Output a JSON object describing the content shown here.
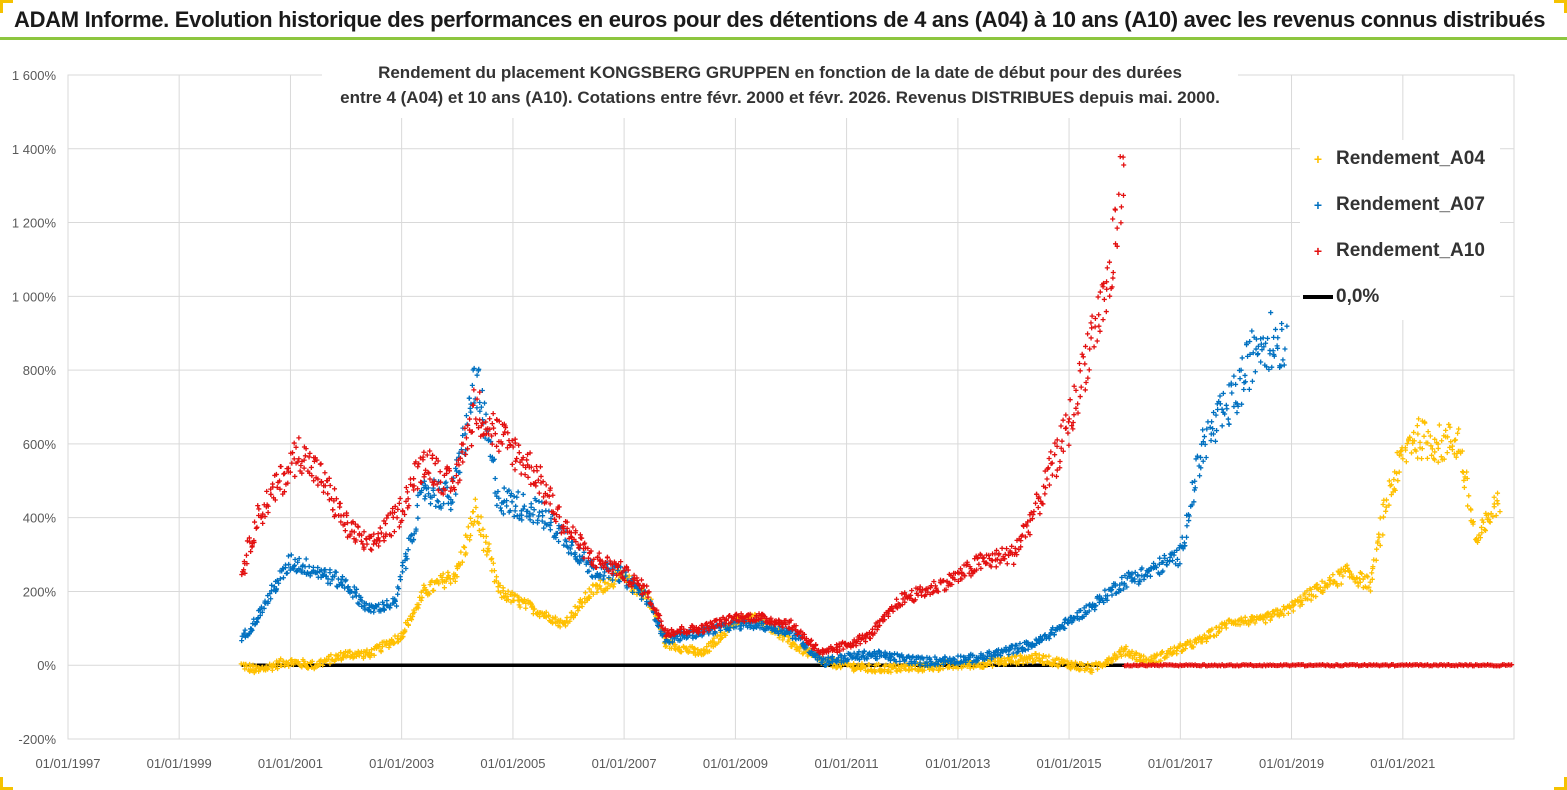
{
  "header": {
    "title": "ADAM Informe. Evolution historique des performances en euros pour des détentions de 4 ans (A04) à 10 ans (A10) avec les revenus connus distribués"
  },
  "chart_data": {
    "type": "scatter",
    "title_line1": "Rendement du placement KONGSBERG GRUPPEN en fonction de la date de début pour des durées",
    "title_line2": "entre 4 (A04) et 10 ans (A10). Cotations entre févr. 2000 et févr. 2026. Revenus DISTRIBUES depuis mai. 2000.",
    "xlabel": "",
    "ylabel": "",
    "x_range": [
      "01/01/1997",
      "01/01/2023"
    ],
    "y_range": [
      -200,
      1600
    ],
    "x_ticks": [
      "01/01/1997",
      "01/01/1999",
      "01/01/2001",
      "01/01/2003",
      "01/01/2005",
      "01/01/2007",
      "01/01/2009",
      "01/01/2011",
      "01/01/2013",
      "01/01/2015",
      "01/01/2017",
      "01/01/2019",
      "01/01/2021"
    ],
    "y_ticks": [
      "-200%",
      "0%",
      "200%",
      "400%",
      "600%",
      "800%",
      "1 000%",
      "1 200%",
      "1 400%",
      "1 600%"
    ],
    "grid": true,
    "legend_position": "right",
    "zero_line_label": "0,0%",
    "series": [
      {
        "name": "Rendement_A04",
        "color": "#ffc000",
        "points": [
          [
            "2000-02-15",
            0
          ],
          [
            "2000-06-01",
            -15
          ],
          [
            "2000-12-01",
            10
          ],
          [
            "2001-06-01",
            0
          ],
          [
            "2002-01-01",
            30
          ],
          [
            "2002-06-01",
            30
          ],
          [
            "2003-01-01",
            80
          ],
          [
            "2003-06-01",
            200
          ],
          [
            "2004-01-01",
            250
          ],
          [
            "2004-05-01",
            420
          ],
          [
            "2004-10-01",
            200
          ],
          [
            "2005-06-01",
            150
          ],
          [
            "2005-12-01",
            110
          ],
          [
            "2006-06-01",
            200
          ],
          [
            "2006-12-01",
            240
          ],
          [
            "2007-06-01",
            190
          ],
          [
            "2007-10-01",
            60
          ],
          [
            "2008-06-01",
            30
          ],
          [
            "2009-01-01",
            120
          ],
          [
            "2009-06-01",
            130
          ],
          [
            "2010-01-01",
            60
          ],
          [
            "2010-08-01",
            10
          ],
          [
            "2011-06-01",
            -10
          ],
          [
            "2012-06-01",
            -5
          ],
          [
            "2013-06-01",
            5
          ],
          [
            "2014-06-01",
            20
          ],
          [
            "2015-06-01",
            -10
          ],
          [
            "2016-01-01",
            40
          ],
          [
            "2016-06-01",
            10
          ],
          [
            "2017-06-01",
            70
          ],
          [
            "2017-12-01",
            120
          ],
          [
            "2018-06-01",
            120
          ],
          [
            "2018-12-01",
            150
          ],
          [
            "2019-06-01",
            200
          ],
          [
            "2020-01-01",
            250
          ],
          [
            "2020-06-01",
            220
          ],
          [
            "2020-10-01",
            470
          ],
          [
            "2021-03-01",
            620
          ],
          [
            "2021-09-01",
            600
          ],
          [
            "2022-01-01",
            610
          ],
          [
            "2022-05-01",
            330
          ],
          [
            "2022-10-01",
            460
          ]
        ]
      },
      {
        "name": "Rendement_A07",
        "color": "#0070c0",
        "points": [
          [
            "2000-02-15",
            70
          ],
          [
            "2000-06-01",
            130
          ],
          [
            "2000-10-01",
            220
          ],
          [
            "2001-01-01",
            280
          ],
          [
            "2001-06-01",
            260
          ],
          [
            "2002-01-01",
            220
          ],
          [
            "2002-06-01",
            150
          ],
          [
            "2002-12-01",
            170
          ],
          [
            "2003-01-01",
            250
          ],
          [
            "2003-06-01",
            480
          ],
          [
            "2003-12-01",
            450
          ],
          [
            "2004-05-01",
            780
          ],
          [
            "2004-10-01",
            450
          ],
          [
            "2005-06-01",
            420
          ],
          [
            "2005-12-01",
            350
          ],
          [
            "2006-06-01",
            260
          ],
          [
            "2006-12-01",
            250
          ],
          [
            "2007-06-01",
            180
          ],
          [
            "2007-10-01",
            70
          ],
          [
            "2008-06-01",
            90
          ],
          [
            "2009-01-01",
            110
          ],
          [
            "2009-06-01",
            110
          ],
          [
            "2010-01-01",
            90
          ],
          [
            "2010-08-01",
            10
          ],
          [
            "2011-06-01",
            30
          ],
          [
            "2012-06-01",
            10
          ],
          [
            "2013-06-01",
            20
          ],
          [
            "2014-06-01",
            60
          ],
          [
            "2015-06-01",
            160
          ],
          [
            "2016-01-01",
            230
          ],
          [
            "2016-06-01",
            250
          ],
          [
            "2017-01-01",
            300
          ],
          [
            "2017-06-01",
            600
          ],
          [
            "2018-01-01",
            730
          ],
          [
            "2018-06-01",
            880
          ],
          [
            "2018-12-01",
            880
          ]
        ]
      },
      {
        "name": "Rendement_A10",
        "color": "#e31010",
        "points": [
          [
            "2000-02-15",
            250
          ],
          [
            "2000-06-01",
            400
          ],
          [
            "2000-12-01",
            520
          ],
          [
            "2001-03-01",
            580
          ],
          [
            "2001-08-01",
            500
          ],
          [
            "2002-01-01",
            380
          ],
          [
            "2002-06-01",
            320
          ],
          [
            "2002-12-01",
            400
          ],
          [
            "2003-06-01",
            560
          ],
          [
            "2003-12-01",
            480
          ],
          [
            "2004-05-01",
            700
          ],
          [
            "2004-10-01",
            620
          ],
          [
            "2005-06-01",
            520
          ],
          [
            "2005-12-01",
            380
          ],
          [
            "2006-06-01",
            290
          ],
          [
            "2006-12-01",
            260
          ],
          [
            "2007-06-01",
            200
          ],
          [
            "2007-10-01",
            90
          ],
          [
            "2008-06-01",
            100
          ],
          [
            "2009-01-01",
            130
          ],
          [
            "2009-06-01",
            130
          ],
          [
            "2010-01-01",
            110
          ],
          [
            "2010-08-01",
            30
          ],
          [
            "2011-06-01",
            80
          ],
          [
            "2012-01-01",
            180
          ],
          [
            "2012-06-01",
            200
          ],
          [
            "2013-01-01",
            240
          ],
          [
            "2013-06-01",
            280
          ],
          [
            "2014-01-01",
            300
          ],
          [
            "2014-06-01",
            430
          ],
          [
            "2015-01-01",
            650
          ],
          [
            "2015-06-01",
            900
          ],
          [
            "2015-10-01",
            1050
          ],
          [
            "2016-01-01",
            1400
          ]
        ],
        "zero_from": "2016-01-01"
      }
    ]
  }
}
